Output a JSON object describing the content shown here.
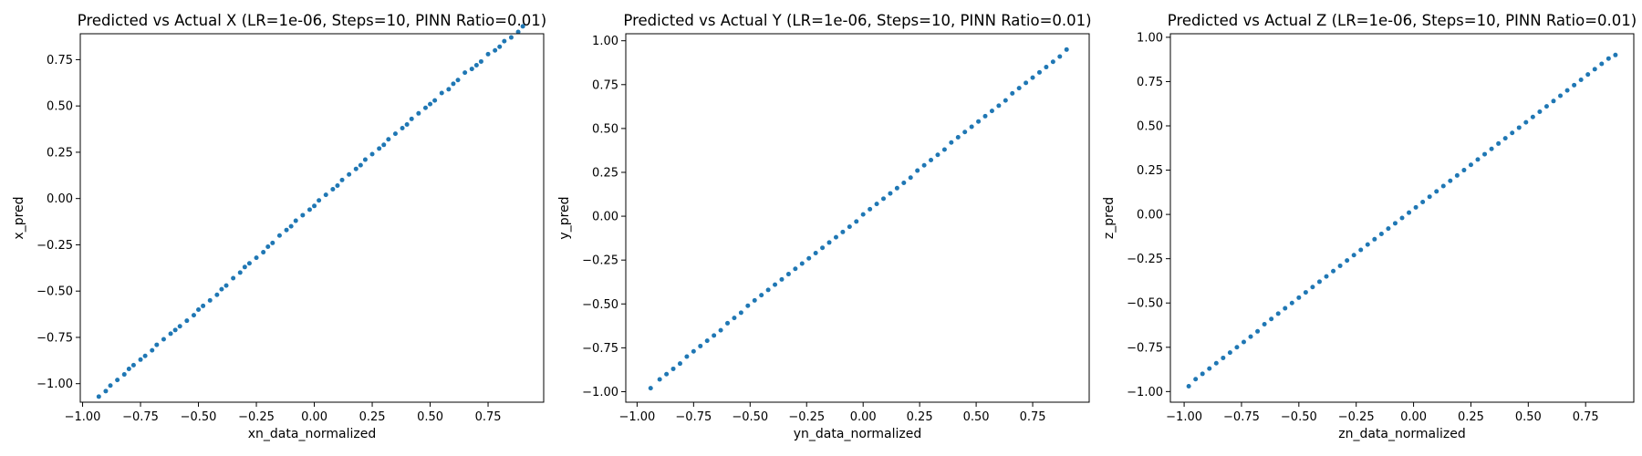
{
  "chart_data": [
    {
      "type": "scatter",
      "title": "Predicted vs Actual X (LR=1e-06, Steps=10, PINN Ratio=0.01)",
      "xlabel": "xn_data_normalized",
      "ylabel": "x_pred",
      "xlim": [
        -1.01,
        0.99
      ],
      "ylim": [
        -1.1,
        0.89
      ],
      "xticks": [
        -1.0,
        -0.75,
        -0.5,
        -0.25,
        0.0,
        0.25,
        0.5,
        0.75
      ],
      "xtick_labels": [
        "−1.00",
        "−0.75",
        "−0.50",
        "−0.25",
        "0.00",
        "0.25",
        "0.50",
        "0.75"
      ],
      "yticks": [
        -1.0,
        -0.75,
        -0.5,
        -0.25,
        0.0,
        0.25,
        0.5,
        0.75
      ],
      "ytick_labels": [
        "−1.00",
        "−0.75",
        "−0.50",
        "−0.25",
        "0.00",
        "0.25",
        "0.50",
        "0.75"
      ],
      "color": "#1f77b4",
      "x": [
        -0.93,
        -0.9,
        -0.88,
        -0.85,
        -0.82,
        -0.8,
        -0.78,
        -0.75,
        -0.73,
        -0.7,
        -0.68,
        -0.65,
        -0.62,
        -0.6,
        -0.58,
        -0.55,
        -0.52,
        -0.5,
        -0.48,
        -0.45,
        -0.42,
        -0.4,
        -0.38,
        -0.35,
        -0.32,
        -0.3,
        -0.28,
        -0.25,
        -0.22,
        -0.2,
        -0.18,
        -0.15,
        -0.12,
        -0.1,
        -0.08,
        -0.05,
        -0.02,
        0.0,
        0.02,
        0.05,
        0.08,
        0.1,
        0.12,
        0.15,
        0.18,
        0.2,
        0.22,
        0.25,
        0.28,
        0.3,
        0.32,
        0.35,
        0.38,
        0.4,
        0.42,
        0.45,
        0.48,
        0.5,
        0.52,
        0.55,
        0.58,
        0.6,
        0.62,
        0.65,
        0.68,
        0.7,
        0.72,
        0.75,
        0.78,
        0.8,
        0.82,
        0.85,
        0.88,
        0.9
      ],
      "y": [
        -1.07,
        -1.04,
        -1.01,
        -0.98,
        -0.95,
        -0.92,
        -0.9,
        -0.87,
        -0.85,
        -0.82,
        -0.79,
        -0.76,
        -0.73,
        -0.71,
        -0.69,
        -0.66,
        -0.63,
        -0.6,
        -0.58,
        -0.55,
        -0.52,
        -0.49,
        -0.47,
        -0.43,
        -0.4,
        -0.37,
        -0.35,
        -0.32,
        -0.29,
        -0.26,
        -0.24,
        -0.2,
        -0.17,
        -0.15,
        -0.12,
        -0.09,
        -0.06,
        -0.04,
        -0.01,
        0.02,
        0.05,
        0.07,
        0.1,
        0.13,
        0.16,
        0.18,
        0.21,
        0.24,
        0.27,
        0.29,
        0.32,
        0.35,
        0.38,
        0.4,
        0.43,
        0.46,
        0.49,
        0.51,
        0.53,
        0.57,
        0.59,
        0.62,
        0.64,
        0.68,
        0.7,
        0.72,
        0.74,
        0.78,
        0.8,
        0.82,
        0.85,
        0.87,
        0.9,
        0.93
      ]
    },
    {
      "type": "scatter",
      "title": "Predicted vs Actual Y (LR=1e-06, Steps=10, PINN Ratio=0.01)",
      "xlabel": "yn_data_normalized",
      "ylabel": "y_pred",
      "xlim": [
        -1.05,
        1.0
      ],
      "ylim": [
        -1.06,
        1.04
      ],
      "xticks": [
        -1.0,
        -0.75,
        -0.5,
        -0.25,
        0.0,
        0.25,
        0.5,
        0.75
      ],
      "xtick_labels": [
        "−1.00",
        "−0.75",
        "−0.50",
        "−0.25",
        "0.00",
        "0.25",
        "0.50",
        "0.75"
      ],
      "yticks": [
        -1.0,
        -0.75,
        -0.5,
        -0.25,
        0.0,
        0.25,
        0.5,
        0.75,
        1.0
      ],
      "ytick_labels": [
        "−1.00",
        "−0.75",
        "−0.50",
        "−0.25",
        "0.00",
        "0.25",
        "0.50",
        "0.75",
        "1.00"
      ],
      "color": "#1f77b4",
      "x": [
        -0.94,
        -0.9,
        -0.87,
        -0.84,
        -0.81,
        -0.78,
        -0.75,
        -0.72,
        -0.69,
        -0.66,
        -0.63,
        -0.6,
        -0.57,
        -0.54,
        -0.51,
        -0.48,
        -0.45,
        -0.42,
        -0.39,
        -0.36,
        -0.33,
        -0.3,
        -0.27,
        -0.24,
        -0.21,
        -0.18,
        -0.15,
        -0.12,
        -0.09,
        -0.06,
        -0.03,
        0.0,
        0.03,
        0.06,
        0.09,
        0.12,
        0.15,
        0.18,
        0.21,
        0.24,
        0.27,
        0.3,
        0.33,
        0.36,
        0.39,
        0.42,
        0.45,
        0.48,
        0.51,
        0.54,
        0.57,
        0.6,
        0.63,
        0.66,
        0.69,
        0.72,
        0.75,
        0.78,
        0.81,
        0.84,
        0.87,
        0.9
      ],
      "y": [
        -0.98,
        -0.93,
        -0.9,
        -0.87,
        -0.84,
        -0.8,
        -0.77,
        -0.74,
        -0.71,
        -0.68,
        -0.65,
        -0.61,
        -0.58,
        -0.55,
        -0.51,
        -0.48,
        -0.45,
        -0.42,
        -0.39,
        -0.36,
        -0.33,
        -0.3,
        -0.27,
        -0.24,
        -0.21,
        -0.18,
        -0.15,
        -0.12,
        -0.09,
        -0.06,
        -0.03,
        0.01,
        0.04,
        0.07,
        0.1,
        0.13,
        0.16,
        0.19,
        0.22,
        0.26,
        0.29,
        0.32,
        0.35,
        0.38,
        0.42,
        0.45,
        0.48,
        0.51,
        0.54,
        0.57,
        0.6,
        0.63,
        0.66,
        0.7,
        0.73,
        0.76,
        0.79,
        0.82,
        0.85,
        0.88,
        0.91,
        0.95
      ]
    },
    {
      "type": "scatter",
      "title": "Predicted vs Actual Z (LR=1e-06, Steps=10, PINN Ratio=0.01)",
      "xlabel": "zn_data_normalized",
      "ylabel": "z_pred",
      "xlim": [
        -1.06,
        0.96
      ],
      "ylim": [
        -1.06,
        1.02
      ],
      "xticks": [
        -1.0,
        -0.75,
        -0.5,
        -0.25,
        0.0,
        0.25,
        0.5,
        0.75
      ],
      "xtick_labels": [
        "−1.00",
        "−0.75",
        "−0.50",
        "−0.25",
        "0.00",
        "0.25",
        "0.50",
        "0.75"
      ],
      "yticks": [
        -1.0,
        -0.75,
        -0.5,
        -0.25,
        0.0,
        0.25,
        0.5,
        0.75,
        1.0
      ],
      "ytick_labels": [
        "−1.00",
        "−0.75",
        "−0.50",
        "−0.25",
        "0.00",
        "0.25",
        "0.50",
        "0.75",
        "1.00"
      ],
      "color": "#1f77b4",
      "x": [
        -0.98,
        -0.95,
        -0.92,
        -0.89,
        -0.86,
        -0.83,
        -0.8,
        -0.77,
        -0.74,
        -0.71,
        -0.68,
        -0.65,
        -0.62,
        -0.59,
        -0.56,
        -0.53,
        -0.5,
        -0.47,
        -0.44,
        -0.41,
        -0.38,
        -0.35,
        -0.32,
        -0.29,
        -0.26,
        -0.23,
        -0.2,
        -0.17,
        -0.14,
        -0.11,
        -0.08,
        -0.05,
        -0.02,
        0.01,
        0.04,
        0.07,
        0.1,
        0.13,
        0.16,
        0.19,
        0.22,
        0.25,
        0.28,
        0.31,
        0.34,
        0.37,
        0.4,
        0.43,
        0.46,
        0.49,
        0.52,
        0.55,
        0.58,
        0.61,
        0.64,
        0.67,
        0.7,
        0.73,
        0.76,
        0.79,
        0.82,
        0.85,
        0.88
      ],
      "y": [
        -0.97,
        -0.93,
        -0.9,
        -0.87,
        -0.84,
        -0.81,
        -0.78,
        -0.75,
        -0.72,
        -0.69,
        -0.66,
        -0.62,
        -0.59,
        -0.56,
        -0.53,
        -0.5,
        -0.47,
        -0.44,
        -0.41,
        -0.38,
        -0.35,
        -0.32,
        -0.29,
        -0.26,
        -0.23,
        -0.2,
        -0.17,
        -0.14,
        -0.11,
        -0.08,
        -0.05,
        -0.02,
        0.01,
        0.04,
        0.07,
        0.1,
        0.13,
        0.16,
        0.19,
        0.22,
        0.25,
        0.28,
        0.31,
        0.34,
        0.37,
        0.4,
        0.43,
        0.46,
        0.49,
        0.52,
        0.55,
        0.58,
        0.61,
        0.64,
        0.67,
        0.7,
        0.73,
        0.76,
        0.79,
        0.82,
        0.85,
        0.88,
        0.9
      ]
    }
  ]
}
